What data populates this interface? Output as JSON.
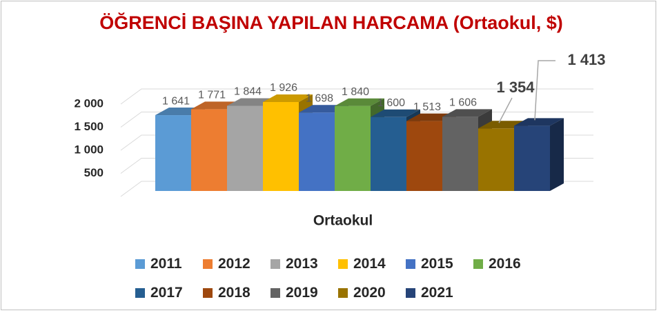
{
  "chart_data": {
    "type": "bar3d",
    "title": "ÖĞRENCİ BAŞINA YAPILAN HARCAMA (Ortaokul, $)",
    "categories": [
      "Ortaokul"
    ],
    "ylim": [
      0,
      2000
    ],
    "yticks": [
      500,
      {
        "value": 1000,
        "label": "1 000"
      },
      {
        "value": 1500,
        "label": "1 500"
      },
      {
        "value": 2000,
        "label": "2 000"
      }
    ],
    "grid": true,
    "legend": "bottom",
    "series": [
      {
        "name": "2011",
        "color": "#5b9bd5",
        "values": [
          1641
        ],
        "value_labels": [
          "1 641"
        ]
      },
      {
        "name": "2012",
        "color": "#ed7d31",
        "values": [
          1771
        ],
        "value_labels": [
          "1 771"
        ]
      },
      {
        "name": "2013",
        "color": "#a5a5a5",
        "values": [
          1844
        ],
        "value_labels": [
          "1 844"
        ]
      },
      {
        "name": "2014",
        "color": "#ffc000",
        "values": [
          1926
        ],
        "value_labels": [
          "1 926"
        ]
      },
      {
        "name": "2015",
        "color": "#4472c4",
        "values": [
          1698
        ],
        "value_labels": [
          "1 698"
        ]
      },
      {
        "name": "2016",
        "color": "#70ad47",
        "values": [
          1840
        ],
        "value_labels": [
          "1 840"
        ]
      },
      {
        "name": "2017",
        "color": "#255e91",
        "values": [
          1600
        ],
        "value_labels": [
          "1 600"
        ]
      },
      {
        "name": "2018",
        "color": "#9e480e",
        "values": [
          1513
        ],
        "value_labels": [
          "1 513"
        ]
      },
      {
        "name": "2019",
        "color": "#636363",
        "values": [
          1606
        ],
        "value_labels": [
          "1 606"
        ]
      },
      {
        "name": "2020",
        "color": "#997300",
        "values": [
          1354
        ],
        "value_labels": [
          "1 354"
        ]
      },
      {
        "name": "2021",
        "color": "#264478",
        "values": [
          1413
        ],
        "value_labels": [
          "1 413"
        ]
      }
    ]
  }
}
